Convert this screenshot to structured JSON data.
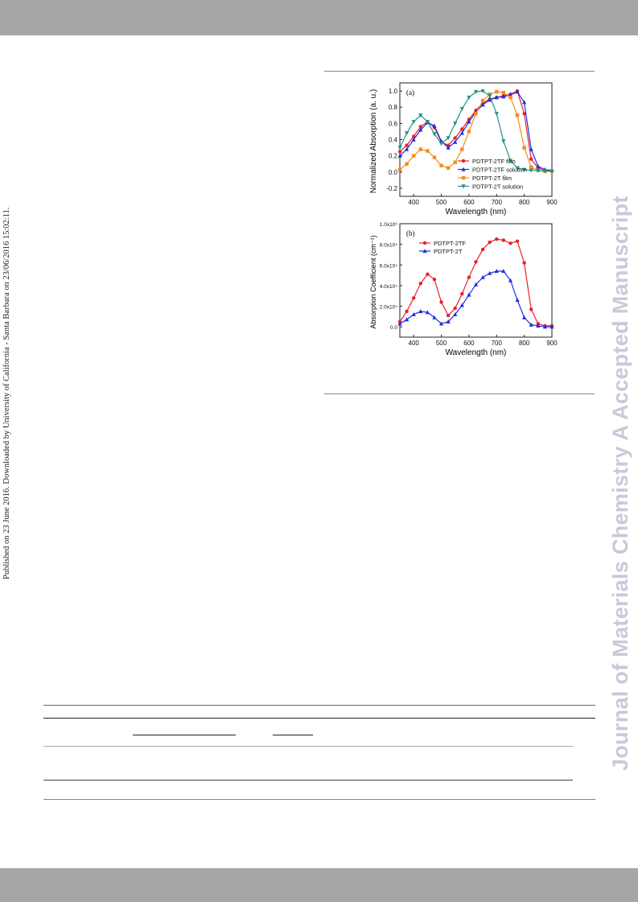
{
  "side_note": "Published on 23 June 2016. Downloaded by University of California - Santa Barbara on 23/06/2016 15:02:11.",
  "watermark": "Journal of Materials Chemistry A Accepted Manuscript",
  "chart_data": [
    {
      "type": "line",
      "panel_label": "(a)",
      "xlabel": "Wavelength (nm)",
      "ylabel": "Normalized Absorption (a. u.)",
      "xlim": [
        350,
        900
      ],
      "ylim": [
        -0.3,
        1.1
      ],
      "xticks": [
        400,
        500,
        600,
        700,
        800,
        900
      ],
      "yticks": [
        "-0.2",
        "0.0",
        "0.2",
        "0.4",
        "0.6",
        "0.8",
        "1.0"
      ],
      "ytick_values": [
        -0.2,
        0.0,
        0.2,
        0.4,
        0.6,
        0.8,
        1.0
      ],
      "legend_position": "bottom-right",
      "series": [
        {
          "name": "PDTPT-2TF film",
          "color": "#e8202a",
          "marker": "circle",
          "x": [
            350,
            375,
            400,
            425,
            450,
            475,
            500,
            525,
            550,
            575,
            600,
            625,
            650,
            675,
            700,
            725,
            750,
            775,
            800,
            825,
            850,
            875,
            900
          ],
          "y": [
            0.25,
            0.33,
            0.44,
            0.56,
            0.62,
            0.55,
            0.37,
            0.33,
            0.42,
            0.53,
            0.65,
            0.76,
            0.85,
            0.9,
            0.92,
            0.94,
            0.96,
            1.0,
            0.72,
            0.16,
            0.05,
            0.02,
            0.01
          ]
        },
        {
          "name": "PDTPT-2TF solution",
          "color": "#1d2ee0",
          "marker": "triangle-up",
          "x": [
            350,
            375,
            400,
            425,
            450,
            475,
            500,
            525,
            550,
            575,
            600,
            625,
            650,
            675,
            700,
            725,
            750,
            775,
            800,
            825,
            850,
            875,
            900
          ],
          "y": [
            0.2,
            0.28,
            0.4,
            0.52,
            0.61,
            0.57,
            0.38,
            0.3,
            0.37,
            0.48,
            0.62,
            0.74,
            0.83,
            0.89,
            0.92,
            0.93,
            0.95,
            0.99,
            0.86,
            0.28,
            0.07,
            0.03,
            0.02
          ]
        },
        {
          "name": "PDTPT-2T film",
          "color": "#f58a1e",
          "marker": "square",
          "x": [
            350,
            375,
            400,
            425,
            450,
            475,
            500,
            525,
            550,
            575,
            600,
            625,
            650,
            675,
            700,
            725,
            750,
            775,
            800,
            825,
            850,
            875,
            900
          ],
          "y": [
            0.03,
            0.1,
            0.2,
            0.28,
            0.26,
            0.18,
            0.08,
            0.05,
            0.12,
            0.28,
            0.5,
            0.72,
            0.88,
            0.96,
            0.99,
            0.98,
            0.92,
            0.7,
            0.3,
            0.06,
            0.02,
            0.01,
            0.01
          ]
        },
        {
          "name": "PDTPT-2T solution",
          "color": "#1f948a",
          "marker": "triangle-down",
          "x": [
            350,
            375,
            400,
            425,
            450,
            475,
            500,
            525,
            550,
            575,
            600,
            625,
            650,
            675,
            700,
            725,
            750,
            775,
            800,
            825,
            850,
            875,
            900
          ],
          "y": [
            0.3,
            0.48,
            0.62,
            0.7,
            0.62,
            0.47,
            0.35,
            0.42,
            0.6,
            0.78,
            0.92,
            0.99,
            1.0,
            0.94,
            0.72,
            0.38,
            0.14,
            0.05,
            0.03,
            0.02,
            0.02,
            0.01,
            0.01
          ]
        }
      ]
    },
    {
      "type": "line",
      "panel_label": "(b)",
      "xlabel": "Wavelength (nm)",
      "ylabel": "Absorption Coefficient (cm⁻¹)",
      "xlim": [
        350,
        900
      ],
      "ylim": [
        -0.1,
        1.0
      ],
      "xticks": [
        400,
        500,
        600,
        700,
        800,
        900
      ],
      "yticks": [
        "0.0",
        "2.0x10⁴",
        "4.0x10⁴",
        "6.0x10⁴",
        "8.0x10⁴",
        "1.0x10⁵"
      ],
      "ytick_values": [
        0.0,
        0.2,
        0.4,
        0.6,
        0.8,
        1.0
      ],
      "y_unit_note": "values in units of 1e5 cm-1",
      "legend_position": "top-left",
      "series": [
        {
          "name": "PDTPT-2TF",
          "color": "#e8202a",
          "marker": "circle",
          "x": [
            350,
            375,
            400,
            425,
            450,
            475,
            500,
            525,
            550,
            575,
            600,
            625,
            650,
            675,
            700,
            725,
            750,
            775,
            800,
            825,
            850,
            875,
            900
          ],
          "y": [
            0.05,
            0.15,
            0.28,
            0.42,
            0.51,
            0.46,
            0.24,
            0.11,
            0.18,
            0.32,
            0.48,
            0.63,
            0.75,
            0.82,
            0.85,
            0.84,
            0.81,
            0.83,
            0.62,
            0.17,
            0.03,
            0.01,
            0.01
          ]
        },
        {
          "name": "PDTPT-2T",
          "color": "#1d2ee0",
          "marker": "triangle-up",
          "x": [
            350,
            375,
            400,
            425,
            450,
            475,
            500,
            525,
            550,
            575,
            600,
            625,
            650,
            675,
            700,
            725,
            750,
            775,
            800,
            825,
            850,
            875,
            900
          ],
          "y": [
            0.03,
            0.07,
            0.12,
            0.15,
            0.14,
            0.09,
            0.03,
            0.05,
            0.12,
            0.21,
            0.31,
            0.41,
            0.48,
            0.52,
            0.54,
            0.54,
            0.45,
            0.26,
            0.09,
            0.02,
            0.01,
            0.0,
            0.0
          ]
        }
      ]
    }
  ]
}
